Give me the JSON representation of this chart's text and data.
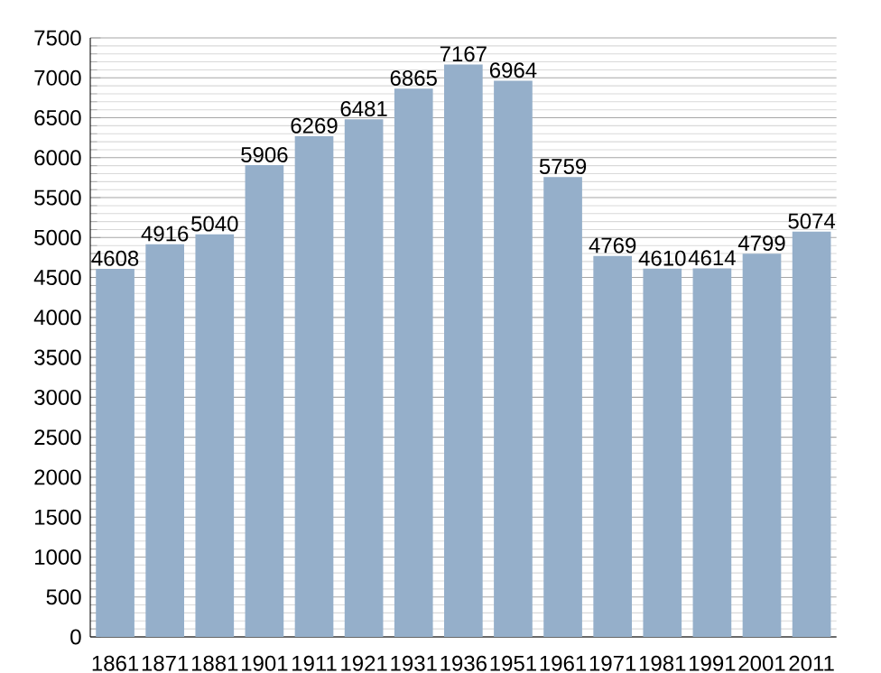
{
  "chart_data": {
    "type": "bar",
    "categories": [
      "1861",
      "1871",
      "1881",
      "1901",
      "1911",
      "1921",
      "1931",
      "1936",
      "1951",
      "1961",
      "1971",
      "1981",
      "1991",
      "2001",
      "2011"
    ],
    "values": [
      4608,
      4916,
      5040,
      5906,
      6269,
      6481,
      6865,
      7167,
      6964,
      5759,
      4769,
      4610,
      4614,
      4799,
      5074
    ],
    "color": "#95afca",
    "ylim": [
      0,
      7500
    ],
    "yticks": [
      0,
      500,
      1000,
      1500,
      2000,
      2500,
      3000,
      3500,
      4000,
      4500,
      5000,
      5500,
      6000,
      6500,
      7000,
      7500
    ],
    "grid": "y",
    "data_labels": true
  }
}
